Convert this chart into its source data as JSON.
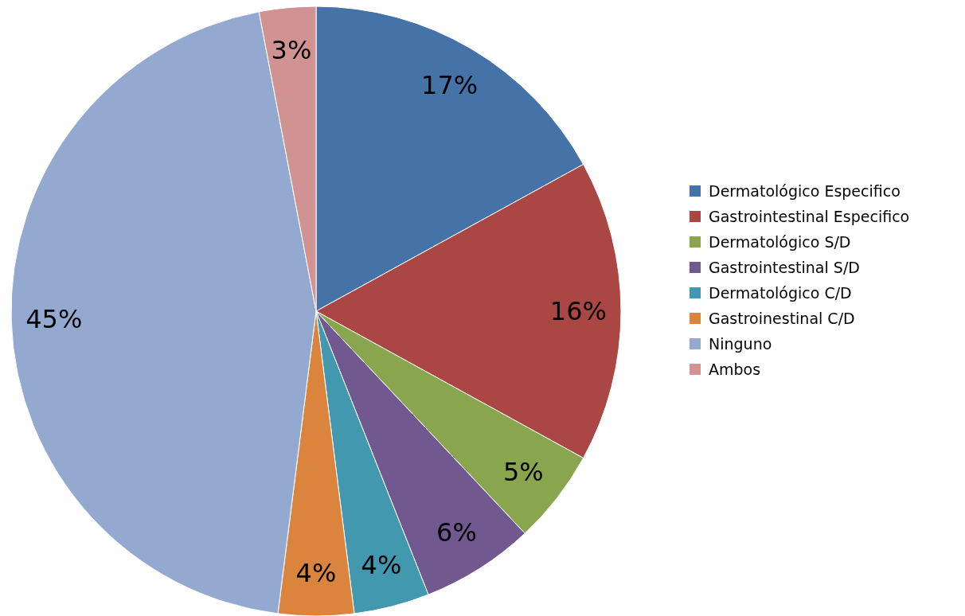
{
  "chart_data": {
    "type": "pie",
    "categories": [
      "Dermatológico Especifico",
      "Gastrointestinal Especifico",
      "Dermatológico S/D",
      "Gastrointestinal S/D",
      "Dermatológico C/D",
      "Gastroinestinal C/D",
      "Ninguno",
      "Ambos"
    ],
    "values": [
      17,
      16,
      5,
      6,
      4,
      4,
      45,
      3
    ],
    "colors": [
      "#4572a7",
      "#aa4643",
      "#89a54e",
      "#71588f",
      "#4198af",
      "#db843d",
      "#93a9cf",
      "#d19392"
    ],
    "value_labels": [
      "17%",
      "16%",
      "5%",
      "6%",
      "4%",
      "4%",
      "45%",
      "3%"
    ],
    "legend": "right"
  }
}
